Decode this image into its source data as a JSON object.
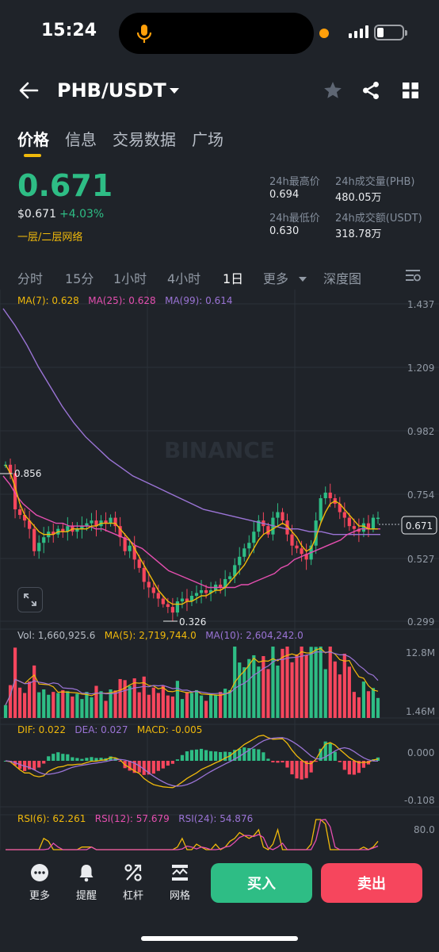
{
  "status_bar": {
    "time": "15:24"
  },
  "header": {
    "pair": "PHB/USDT"
  },
  "tabs": [
    {
      "label": "价格",
      "active": true
    },
    {
      "label": "信息",
      "active": false
    },
    {
      "label": "交易数据",
      "active": false
    },
    {
      "label": "广场",
      "active": false
    }
  ],
  "price": {
    "last": "0.671",
    "usd": "$0.671",
    "change": "+4.03%",
    "network": "一层/二层网络"
  },
  "stats": {
    "high_label": "24h最高价",
    "high_value": "0.694",
    "vol_label": "24h成交量(PHB)",
    "vol_value": "480.05万",
    "low_label": "24h最低价",
    "low_value": "0.630",
    "amount_label": "24h成交额(USDT)",
    "amount_value": "318.78万"
  },
  "intervals": [
    {
      "label": "分时"
    },
    {
      "label": "15分"
    },
    {
      "label": "1小时"
    },
    {
      "label": "4小时"
    },
    {
      "label": "1日",
      "active": true
    },
    {
      "label": "更多"
    },
    {
      "label": "深度图"
    }
  ],
  "colors": {
    "up": "#2ebd85",
    "down": "#f6465d",
    "ma7": "#f0b90b",
    "ma25": "#e54fb0",
    "ma99": "#9b74d6",
    "accent": "#f0b90b"
  },
  "main_chart": {
    "legend": {
      "ma7": "MA(7): 0.628",
      "ma25": "MA(25): 0.628",
      "ma99": "MA(99): 0.614"
    },
    "y_ticks": [
      "1.437",
      "1.209",
      "0.982",
      "0.754",
      "0.527",
      "0.299"
    ],
    "current_price_tag": "0.671",
    "high_annotation": "0.856",
    "low_annotation": "0.326",
    "watermark": "BINANCE"
  },
  "volume_chart": {
    "legend": {
      "vol": "Vol: 1,660,925.6",
      "ma5": "MA(5): 2,719,744.0",
      "ma10": "MA(10): 2,604,242.0"
    },
    "y_ticks": [
      "12.8M",
      "1.46M"
    ]
  },
  "macd_chart": {
    "legend": {
      "dif": "DIF: 0.022",
      "dea": "DEA: 0.027",
      "macd": "MACD: -0.005"
    },
    "y_ticks": [
      "0.000",
      "-0.108"
    ]
  },
  "rsi_chart": {
    "legend": {
      "rsi6": "RSI(6): 62.261",
      "rsi12": "RSI(12): 57.679",
      "rsi24": "RSI(24): 54.876"
    },
    "y_ticks": [
      "80.0"
    ]
  },
  "bottom_bar": {
    "more": "更多",
    "alert": "提醒",
    "leverage": "杠杆",
    "grid": "网格",
    "buy": "买入",
    "sell": "卖出"
  },
  "chart_data": {
    "type": "candlestick",
    "interval": "1日",
    "y_range": [
      0.299,
      1.437
    ],
    "price_path": [
      0.86,
      0.83,
      0.7,
      0.68,
      0.66,
      0.63,
      0.55,
      0.58,
      0.6,
      0.62,
      0.61,
      0.63,
      0.62,
      0.64,
      0.62,
      0.63,
      0.64,
      0.65,
      0.66,
      0.64,
      0.66,
      0.65,
      0.67,
      0.64,
      0.6,
      0.55,
      0.57,
      0.52,
      0.49,
      0.44,
      0.42,
      0.4,
      0.38,
      0.36,
      0.35,
      0.33,
      0.37,
      0.38,
      0.37,
      0.39,
      0.4,
      0.41,
      0.4,
      0.41,
      0.43,
      0.42,
      0.45,
      0.46,
      0.5,
      0.53,
      0.56,
      0.58,
      0.62,
      0.66,
      0.64,
      0.61,
      0.67,
      0.69,
      0.66,
      0.61,
      0.57,
      0.56,
      0.54,
      0.52,
      0.57,
      0.66,
      0.74,
      0.76,
      0.74,
      0.72,
      0.69,
      0.67,
      0.64,
      0.63,
      0.62,
      0.65,
      0.63,
      0.67,
      0.67
    ],
    "ma7": [
      0.86,
      0.83,
      0.78,
      0.72,
      0.68,
      0.66,
      0.64,
      0.62,
      0.61,
      0.61,
      0.61,
      0.62,
      0.62,
      0.62,
      0.63,
      0.63,
      0.63,
      0.63,
      0.64,
      0.64,
      0.65,
      0.65,
      0.65,
      0.65,
      0.63,
      0.61,
      0.59,
      0.56,
      0.53,
      0.5,
      0.47,
      0.44,
      0.41,
      0.39,
      0.37,
      0.36,
      0.36,
      0.36,
      0.37,
      0.37,
      0.38,
      0.39,
      0.39,
      0.4,
      0.41,
      0.41,
      0.42,
      0.44,
      0.46,
      0.48,
      0.5,
      0.53,
      0.56,
      0.59,
      0.61,
      0.62,
      0.63,
      0.64,
      0.65,
      0.64,
      0.62,
      0.6,
      0.57,
      0.55,
      0.56,
      0.6,
      0.65,
      0.69,
      0.72,
      0.73,
      0.72,
      0.7,
      0.68,
      0.66,
      0.64,
      0.64,
      0.63,
      0.63,
      0.63
    ],
    "ma25": [
      0.82,
      0.79,
      0.75,
      0.72,
      0.7,
      0.68,
      0.67,
      0.66,
      0.65,
      0.65,
      0.64,
      0.64,
      0.64,
      0.64,
      0.63,
      0.63,
      0.62,
      0.61,
      0.6,
      0.59,
      0.57,
      0.56,
      0.54,
      0.52,
      0.5,
      0.48,
      0.47,
      0.46,
      0.45,
      0.44,
      0.43,
      0.42,
      0.42,
      0.42,
      0.42,
      0.42,
      0.43,
      0.43,
      0.44,
      0.45,
      0.46,
      0.47,
      0.49,
      0.5,
      0.52,
      0.53,
      0.54,
      0.55,
      0.56,
      0.57,
      0.58,
      0.59,
      0.61,
      0.62,
      0.63,
      0.63,
      0.63,
      0.63
    ],
    "ma99": [
      1.42,
      1.36,
      1.29,
      1.21,
      1.14,
      1.07,
      1.01,
      0.96,
      0.92,
      0.88,
      0.85,
      0.82,
      0.8,
      0.78,
      0.76,
      0.74,
      0.72,
      0.7,
      0.69,
      0.68,
      0.67,
      0.66,
      0.65,
      0.64,
      0.63,
      0.63,
      0.62,
      0.62,
      0.61,
      0.61,
      0.61,
      0.61,
      0.61
    ]
  }
}
